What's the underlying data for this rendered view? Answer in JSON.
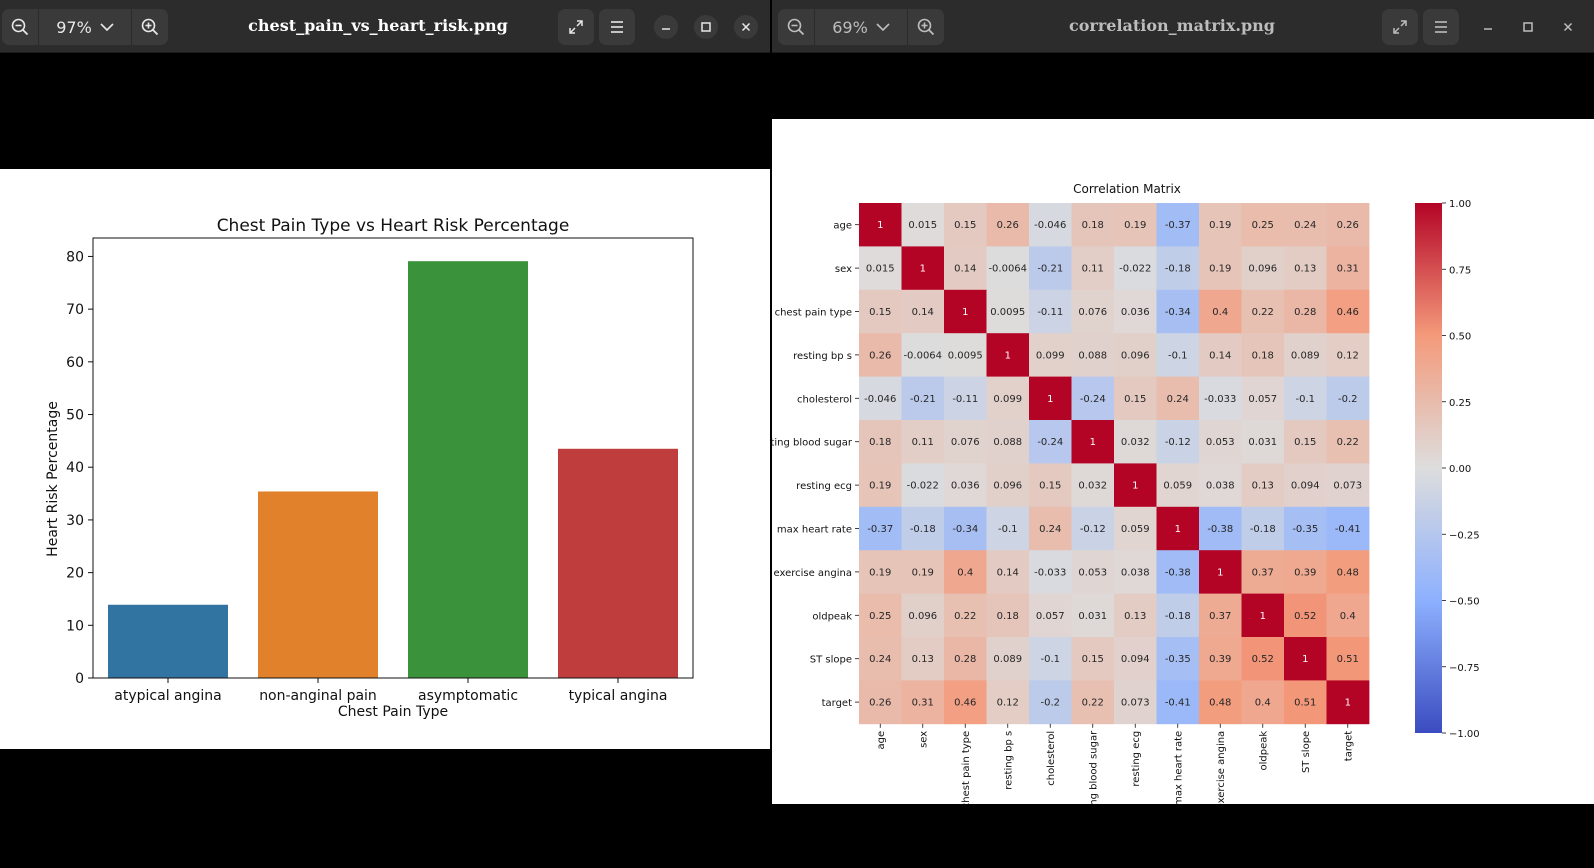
{
  "left_window": {
    "title": "chest_pain_vs_heart_risk.png",
    "zoom": "97%",
    "icons": {
      "zoom_out": "zoom-out-icon",
      "zoom_in": "zoom-in-icon",
      "fullscreen": "fullscreen-icon",
      "menu": "menu-icon",
      "minimize": "minimize-icon",
      "maximize": "maximize-icon",
      "close": "close-icon"
    }
  },
  "right_window": {
    "title": "correlation_matrix.png",
    "zoom": "69%"
  },
  "chart_data": [
    {
      "type": "bar",
      "title": "Chest Pain Type vs Heart Risk Percentage",
      "xlabel": "Chest Pain Type",
      "ylabel": "Heart Risk Percentage",
      "categories": [
        "atypical angina",
        "non-anginal pain",
        "asymptomatic",
        "typical angina"
      ],
      "values": [
        13.9,
        35.4,
        79.1,
        43.5
      ],
      "colors": [
        "#3274a1",
        "#e1812c",
        "#3a923a",
        "#c03d3e"
      ],
      "ylim": [
        0,
        83.5
      ],
      "yticks": [
        0,
        10,
        20,
        30,
        40,
        50,
        60,
        70,
        80
      ]
    },
    {
      "type": "heatmap",
      "title": "Correlation Matrix",
      "labels": [
        "age",
        "sex",
        "chest pain type",
        "resting bp s",
        "cholesterol",
        "fasting blood sugar",
        "resting ecg",
        "max heart rate",
        "exercise angina",
        "oldpeak",
        "ST slope",
        "target"
      ],
      "matrix": [
        [
          "1",
          "0.015",
          "0.15",
          "0.26",
          "-0.046",
          "0.18",
          "0.19",
          "-0.37",
          "0.19",
          "0.25",
          "0.24",
          "0.26"
        ],
        [
          "0.015",
          "1",
          "0.14",
          "-0.0064",
          "-0.21",
          "0.11",
          "-0.022",
          "-0.18",
          "0.19",
          "0.096",
          "0.13",
          "0.31"
        ],
        [
          "0.15",
          "0.14",
          "1",
          "0.0095",
          "-0.11",
          "0.076",
          "0.036",
          "-0.34",
          "0.4",
          "0.22",
          "0.28",
          "0.46"
        ],
        [
          "0.26",
          "-0.0064",
          "0.0095",
          "1",
          "0.099",
          "0.088",
          "0.096",
          "-0.1",
          "0.14",
          "0.18",
          "0.089",
          "0.12"
        ],
        [
          "-0.046",
          "-0.21",
          "-0.11",
          "0.099",
          "1",
          "-0.24",
          "0.15",
          "0.24",
          "-0.033",
          "0.057",
          "-0.1",
          "-0.2"
        ],
        [
          "0.18",
          "0.11",
          "0.076",
          "0.088",
          "-0.24",
          "1",
          "0.032",
          "-0.12",
          "0.053",
          "0.031",
          "0.15",
          "0.22"
        ],
        [
          "0.19",
          "-0.022",
          "0.036",
          "0.096",
          "0.15",
          "0.032",
          "1",
          "0.059",
          "0.038",
          "0.13",
          "0.094",
          "0.073"
        ],
        [
          "-0.37",
          "-0.18",
          "-0.34",
          "-0.1",
          "0.24",
          "-0.12",
          "0.059",
          "1",
          "-0.38",
          "-0.18",
          "-0.35",
          "-0.41"
        ],
        [
          "0.19",
          "0.19",
          "0.4",
          "0.14",
          "-0.033",
          "0.053",
          "0.038",
          "-0.38",
          "1",
          "0.37",
          "0.39",
          "0.48"
        ],
        [
          "0.25",
          "0.096",
          "0.22",
          "0.18",
          "0.057",
          "0.031",
          "0.13",
          "-0.18",
          "0.37",
          "1",
          "0.52",
          "0.4"
        ],
        [
          "0.24",
          "0.13",
          "0.28",
          "0.089",
          "-0.1",
          "0.15",
          "0.094",
          "-0.35",
          "0.39",
          "0.52",
          "1",
          "0.51"
        ],
        [
          "0.26",
          "0.31",
          "0.46",
          "0.12",
          "-0.2",
          "0.22",
          "0.073",
          "-0.41",
          "0.48",
          "0.4",
          "0.51",
          "1"
        ]
      ],
      "colormap": "coolwarm",
      "vmin": -1,
      "vmax": 1,
      "colorbar_ticks": [
        "1.00",
        "0.75",
        "0.50",
        "0.25",
        "0.00",
        "−0.25",
        "−0.50",
        "−0.75",
        "−1.00"
      ]
    }
  ]
}
